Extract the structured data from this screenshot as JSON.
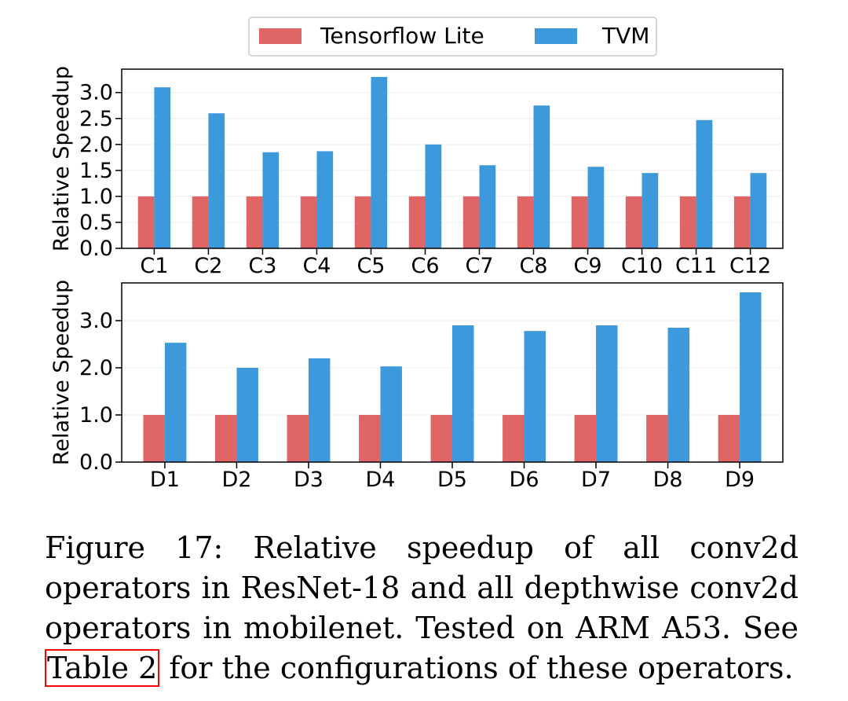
{
  "chart_data": [
    {
      "type": "bar",
      "title": "",
      "xlabel": "",
      "ylabel": "Relative Speedup",
      "ylim": [
        0,
        3.45
      ],
      "yticks": [
        0.0,
        0.5,
        1.0,
        1.5,
        2.0,
        2.5,
        3.0
      ],
      "ytick_labels": [
        "0.0",
        "0.5",
        "1.0",
        "1.5",
        "2.0",
        "2.5",
        "3.0"
      ],
      "categories": [
        "C1",
        "C2",
        "C3",
        "C4",
        "C5",
        "C6",
        "C7",
        "C8",
        "C9",
        "C10",
        "C11",
        "C12"
      ],
      "series": [
        {
          "name": "Tensorflow Lite",
          "color": "#e06666",
          "values": [
            1,
            1,
            1,
            1,
            1,
            1,
            1,
            1,
            1,
            1,
            1,
            1
          ]
        },
        {
          "name": "TVM",
          "color": "#3c99dc",
          "values": [
            3.1,
            2.6,
            1.85,
            1.87,
            3.3,
            2.0,
            1.6,
            2.75,
            1.57,
            1.45,
            2.47,
            1.45
          ]
        }
      ],
      "legend": "top-center",
      "grid": true
    },
    {
      "type": "bar",
      "title": "",
      "xlabel": "",
      "ylabel": "Relative Speedup",
      "ylim": [
        0,
        3.8
      ],
      "yticks": [
        0.0,
        1.0,
        2.0,
        3.0
      ],
      "ytick_labels": [
        "0.0",
        "1.0",
        "2.0",
        "3.0"
      ],
      "categories": [
        "D1",
        "D2",
        "D3",
        "D4",
        "D5",
        "D6",
        "D7",
        "D8",
        "D9"
      ],
      "series": [
        {
          "name": "Tensorflow Lite",
          "color": "#e06666",
          "values": [
            1,
            1,
            1,
            1,
            1,
            1,
            1,
            1,
            1
          ]
        },
        {
          "name": "TVM",
          "color": "#3c99dc",
          "values": [
            2.53,
            2.0,
            2.2,
            2.03,
            2.9,
            2.78,
            2.9,
            2.85,
            3.6
          ]
        }
      ],
      "grid": true
    }
  ],
  "legend": {
    "items": [
      {
        "label": "Tensorflow Lite",
        "color": "#e06666"
      },
      {
        "label": "TVM",
        "color": "#3c99dc"
      }
    ]
  },
  "caption": {
    "before": "Figure 17: Relative speedup of all conv2d operators in ResNet-18 and all depthwise conv2d operators in mobilenet. Tested on ARM A53. See ",
    "ref": "Table 2",
    "after": " for the configurations of these operators."
  }
}
